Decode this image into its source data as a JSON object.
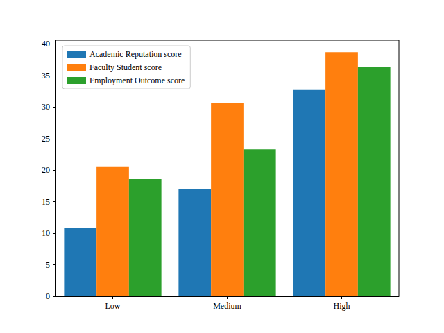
{
  "chart_data": {
    "type": "bar",
    "categories": [
      "Low",
      "Medium",
      "High"
    ],
    "series": [
      {
        "name": "Academic Reputation score",
        "color": "#1f77b4",
        "values": [
          10.8,
          17.0,
          32.7
        ]
      },
      {
        "name": "Faculty Student score",
        "color": "#ff7f0e",
        "values": [
          20.6,
          30.6,
          38.7
        ]
      },
      {
        "name": "Employment Outcome score",
        "color": "#2ca02c",
        "values": [
          18.6,
          23.3,
          36.3
        ]
      }
    ],
    "ylim": [
      0,
      40.6
    ],
    "yticks": [
      0,
      5,
      10,
      15,
      20,
      25,
      30,
      35,
      40
    ],
    "grid": false,
    "legend": "upper left"
  }
}
